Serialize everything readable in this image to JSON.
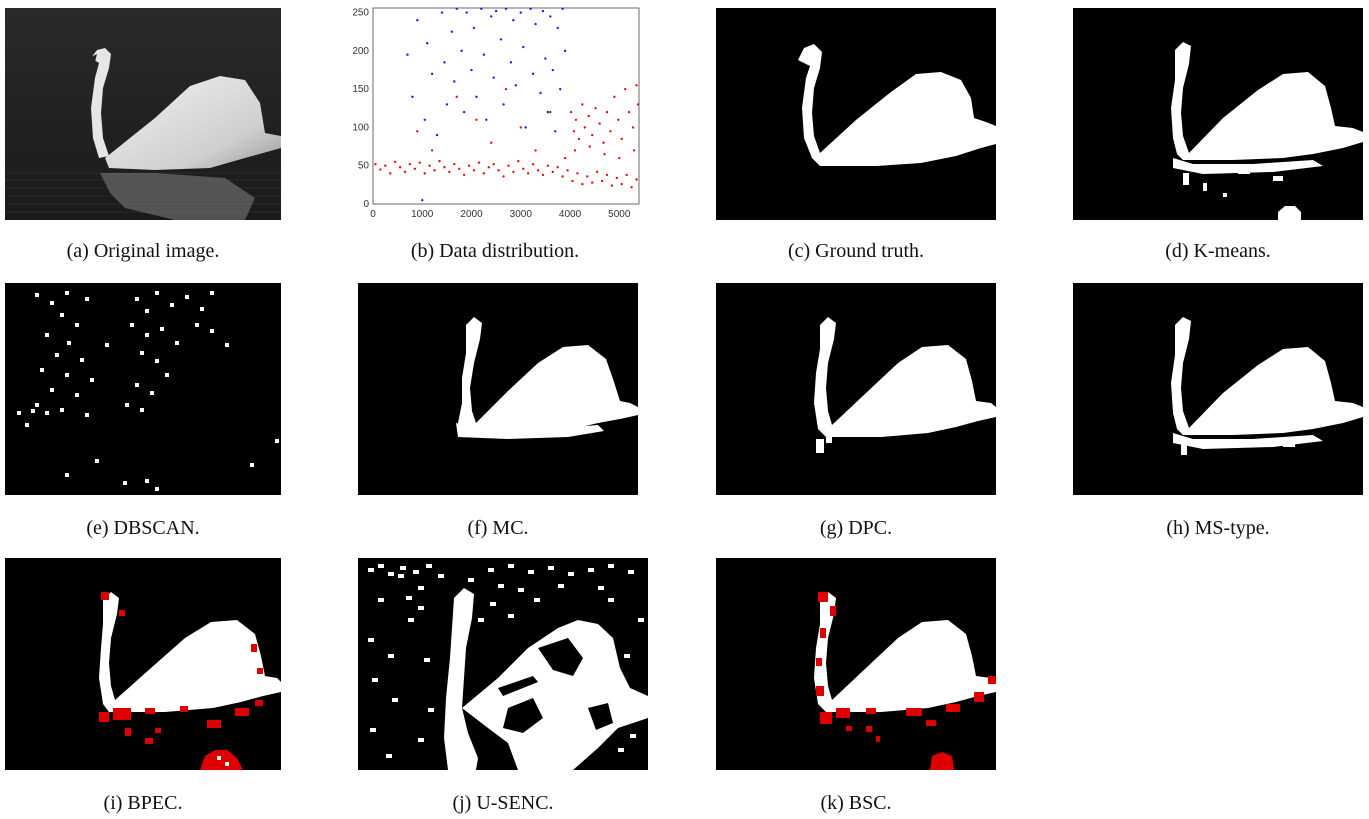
{
  "figure": {
    "captions": {
      "a": "(a) Original image.",
      "b": "(b) Data distribution.",
      "c": "(c) Ground truth.",
      "d": "(d) K-means.",
      "e": "(e) DBSCAN.",
      "f": "(f) MC.",
      "g": "(g) DPC.",
      "h": "(h) MS-type.",
      "i": "(i) BPEC.",
      "j": "(j) U-SENC.",
      "k": "(k) BSC."
    }
  },
  "chart_data": {
    "type": "scatter",
    "title": "",
    "xlabel": "",
    "ylabel": "",
    "xlim": [
      0,
      5400
    ],
    "ylim": [
      0,
      256
    ],
    "xticks": [
      "0",
      "1000",
      "2000",
      "3000",
      "4000",
      "5000"
    ],
    "yticks": [
      "0",
      "50",
      "100",
      "150",
      "200",
      "250"
    ],
    "grid": false,
    "series": [
      {
        "color": "#e01010",
        "points": [
          [
            50,
            52
          ],
          [
            150,
            45
          ],
          [
            250,
            50
          ],
          [
            350,
            40
          ],
          [
            450,
            55
          ],
          [
            550,
            48
          ],
          [
            650,
            42
          ],
          [
            750,
            52
          ],
          [
            850,
            46
          ],
          [
            950,
            54
          ],
          [
            1050,
            40
          ],
          [
            1150,
            50
          ],
          [
            1250,
            44
          ],
          [
            1350,
            56
          ],
          [
            1450,
            48
          ],
          [
            1550,
            42
          ],
          [
            1650,
            52
          ],
          [
            1750,
            46
          ],
          [
            1850,
            38
          ],
          [
            1950,
            50
          ],
          [
            2050,
            44
          ],
          [
            2150,
            54
          ],
          [
            2250,
            40
          ],
          [
            2350,
            48
          ],
          [
            2450,
            52
          ],
          [
            2550,
            44
          ],
          [
            2650,
            36
          ],
          [
            2750,
            50
          ],
          [
            2850,
            42
          ],
          [
            2950,
            56
          ],
          [
            3050,
            46
          ],
          [
            3150,
            40
          ],
          [
            3250,
            52
          ],
          [
            3350,
            44
          ],
          [
            3450,
            38
          ],
          [
            3550,
            50
          ],
          [
            3650,
            42
          ],
          [
            3750,
            48
          ],
          [
            3850,
            36
          ],
          [
            3950,
            44
          ],
          [
            4050,
            30
          ],
          [
            4150,
            40
          ],
          [
            4250,
            26
          ],
          [
            4350,
            36
          ],
          [
            4450,
            28
          ],
          [
            4550,
            42
          ],
          [
            4650,
            30
          ],
          [
            4750,
            38
          ],
          [
            4850,
            24
          ],
          [
            4950,
            34
          ],
          [
            5050,
            26
          ],
          [
            5150,
            38
          ],
          [
            5250,
            22
          ],
          [
            5350,
            32
          ],
          [
            900,
            95
          ],
          [
            1200,
            70
          ],
          [
            1700,
            140
          ],
          [
            2100,
            110
          ],
          [
            2400,
            80
          ],
          [
            2700,
            150
          ],
          [
            3000,
            100
          ],
          [
            3300,
            70
          ],
          [
            3600,
            120
          ],
          [
            3900,
            60
          ],
          [
            4020,
            120
          ],
          [
            4080,
            95
          ],
          [
            4120,
            110
          ],
          [
            4180,
            85
          ],
          [
            4250,
            130
          ],
          [
            4300,
            100
          ],
          [
            4380,
            115
          ],
          [
            4450,
            90
          ],
          [
            4520,
            125
          ],
          [
            4600,
            105
          ],
          [
            4680,
            80
          ],
          [
            4750,
            120
          ],
          [
            4820,
            95
          ],
          [
            4900,
            140
          ],
          [
            4980,
            110
          ],
          [
            5050,
            85
          ],
          [
            5120,
            150
          ],
          [
            5200,
            120
          ],
          [
            5280,
            100
          ],
          [
            5350,
            155
          ],
          [
            5380,
            130
          ],
          [
            4100,
            70
          ],
          [
            4400,
            75
          ],
          [
            4700,
            65
          ],
          [
            5000,
            60
          ],
          [
            5300,
            70
          ]
        ]
      },
      {
        "color": "#1a1aff",
        "points": [
          [
            700,
            195
          ],
          [
            800,
            140
          ],
          [
            900,
            240
          ],
          [
            1000,
            5
          ],
          [
            1050,
            110
          ],
          [
            1100,
            210
          ],
          [
            1200,
            170
          ],
          [
            1300,
            90
          ],
          [
            1400,
            250
          ],
          [
            1450,
            185
          ],
          [
            1500,
            130
          ],
          [
            1600,
            225
          ],
          [
            1650,
            160
          ],
          [
            1700,
            255
          ],
          [
            1800,
            200
          ],
          [
            1850,
            120
          ],
          [
            1900,
            250
          ],
          [
            2000,
            175
          ],
          [
            2050,
            230
          ],
          [
            2100,
            140
          ],
          [
            2200,
            255
          ],
          [
            2250,
            195
          ],
          [
            2300,
            110
          ],
          [
            2400,
            245
          ],
          [
            2450,
            165
          ],
          [
            2500,
            252
          ],
          [
            2600,
            215
          ],
          [
            2650,
            130
          ],
          [
            2700,
            255
          ],
          [
            2800,
            185
          ],
          [
            2850,
            240
          ],
          [
            2900,
            155
          ],
          [
            3000,
            250
          ],
          [
            3050,
            205
          ],
          [
            3100,
            100
          ],
          [
            3200,
            255
          ],
          [
            3250,
            170
          ],
          [
            3300,
            235
          ],
          [
            3400,
            145
          ],
          [
            3450,
            252
          ],
          [
            3500,
            190
          ],
          [
            3550,
            120
          ],
          [
            3600,
            245
          ],
          [
            3650,
            175
          ],
          [
            3700,
            95
          ],
          [
            3750,
            230
          ],
          [
            3800,
            150
          ],
          [
            3850,
            255
          ],
          [
            3900,
            200
          ]
        ]
      }
    ]
  }
}
